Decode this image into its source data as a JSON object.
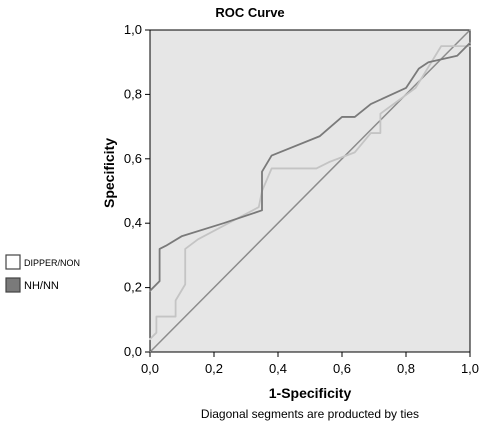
{
  "chart_data": {
    "type": "line",
    "title": "ROC Curve",
    "xlabel": "1-Specificity",
    "ylabel": "Specificity",
    "footnote": "Diagonal segments are producted by ties",
    "xlim": [
      0,
      1
    ],
    "ylim": [
      0,
      1
    ],
    "x_ticks": [
      "0,0",
      "0,2",
      "0,4",
      "0,6",
      "0,8",
      "1,0"
    ],
    "y_ticks": [
      "0,0",
      "0,2",
      "0,4",
      "0,6",
      "0,8",
      "1,0"
    ],
    "x_tick_values": [
      0,
      0.2,
      0.4,
      0.6,
      0.8,
      1.0
    ],
    "y_tick_values": [
      0,
      0.2,
      0.4,
      0.6,
      0.8,
      1.0
    ],
    "grid": false,
    "legend_position": "left",
    "colors": {
      "plot_background": "#e6e6e6",
      "dipper_line": "#c4c4c4",
      "nh_line": "#7a7a7a",
      "reference_line": "#8c8c8c"
    },
    "series": [
      {
        "name": "DIPPER/NON",
        "values": [
          [
            0.0,
            0.04
          ],
          [
            0.02,
            0.06
          ],
          [
            0.02,
            0.11
          ],
          [
            0.08,
            0.11
          ],
          [
            0.08,
            0.16
          ],
          [
            0.11,
            0.21
          ],
          [
            0.11,
            0.32
          ],
          [
            0.15,
            0.35
          ],
          [
            0.34,
            0.45
          ],
          [
            0.35,
            0.5
          ],
          [
            0.38,
            0.57
          ],
          [
            0.52,
            0.57
          ],
          [
            0.56,
            0.59
          ],
          [
            0.64,
            0.62
          ],
          [
            0.69,
            0.68
          ],
          [
            0.72,
            0.68
          ],
          [
            0.72,
            0.74
          ],
          [
            0.83,
            0.82
          ],
          [
            0.91,
            0.95
          ],
          [
            1.0,
            0.95
          ]
        ]
      },
      {
        "name": "NH/NN",
        "values": [
          [
            0.0,
            0.19
          ],
          [
            0.03,
            0.22
          ],
          [
            0.03,
            0.32
          ],
          [
            0.05,
            0.33
          ],
          [
            0.1,
            0.36
          ],
          [
            0.23,
            0.4
          ],
          [
            0.35,
            0.44
          ],
          [
            0.35,
            0.56
          ],
          [
            0.38,
            0.61
          ],
          [
            0.53,
            0.67
          ],
          [
            0.6,
            0.73
          ],
          [
            0.64,
            0.73
          ],
          [
            0.69,
            0.77
          ],
          [
            0.8,
            0.82
          ],
          [
            0.84,
            0.88
          ],
          [
            0.87,
            0.9
          ],
          [
            0.96,
            0.92
          ],
          [
            1.0,
            0.96
          ]
        ]
      }
    ],
    "reference_line": [
      [
        0,
        0
      ],
      [
        1,
        1
      ]
    ]
  }
}
